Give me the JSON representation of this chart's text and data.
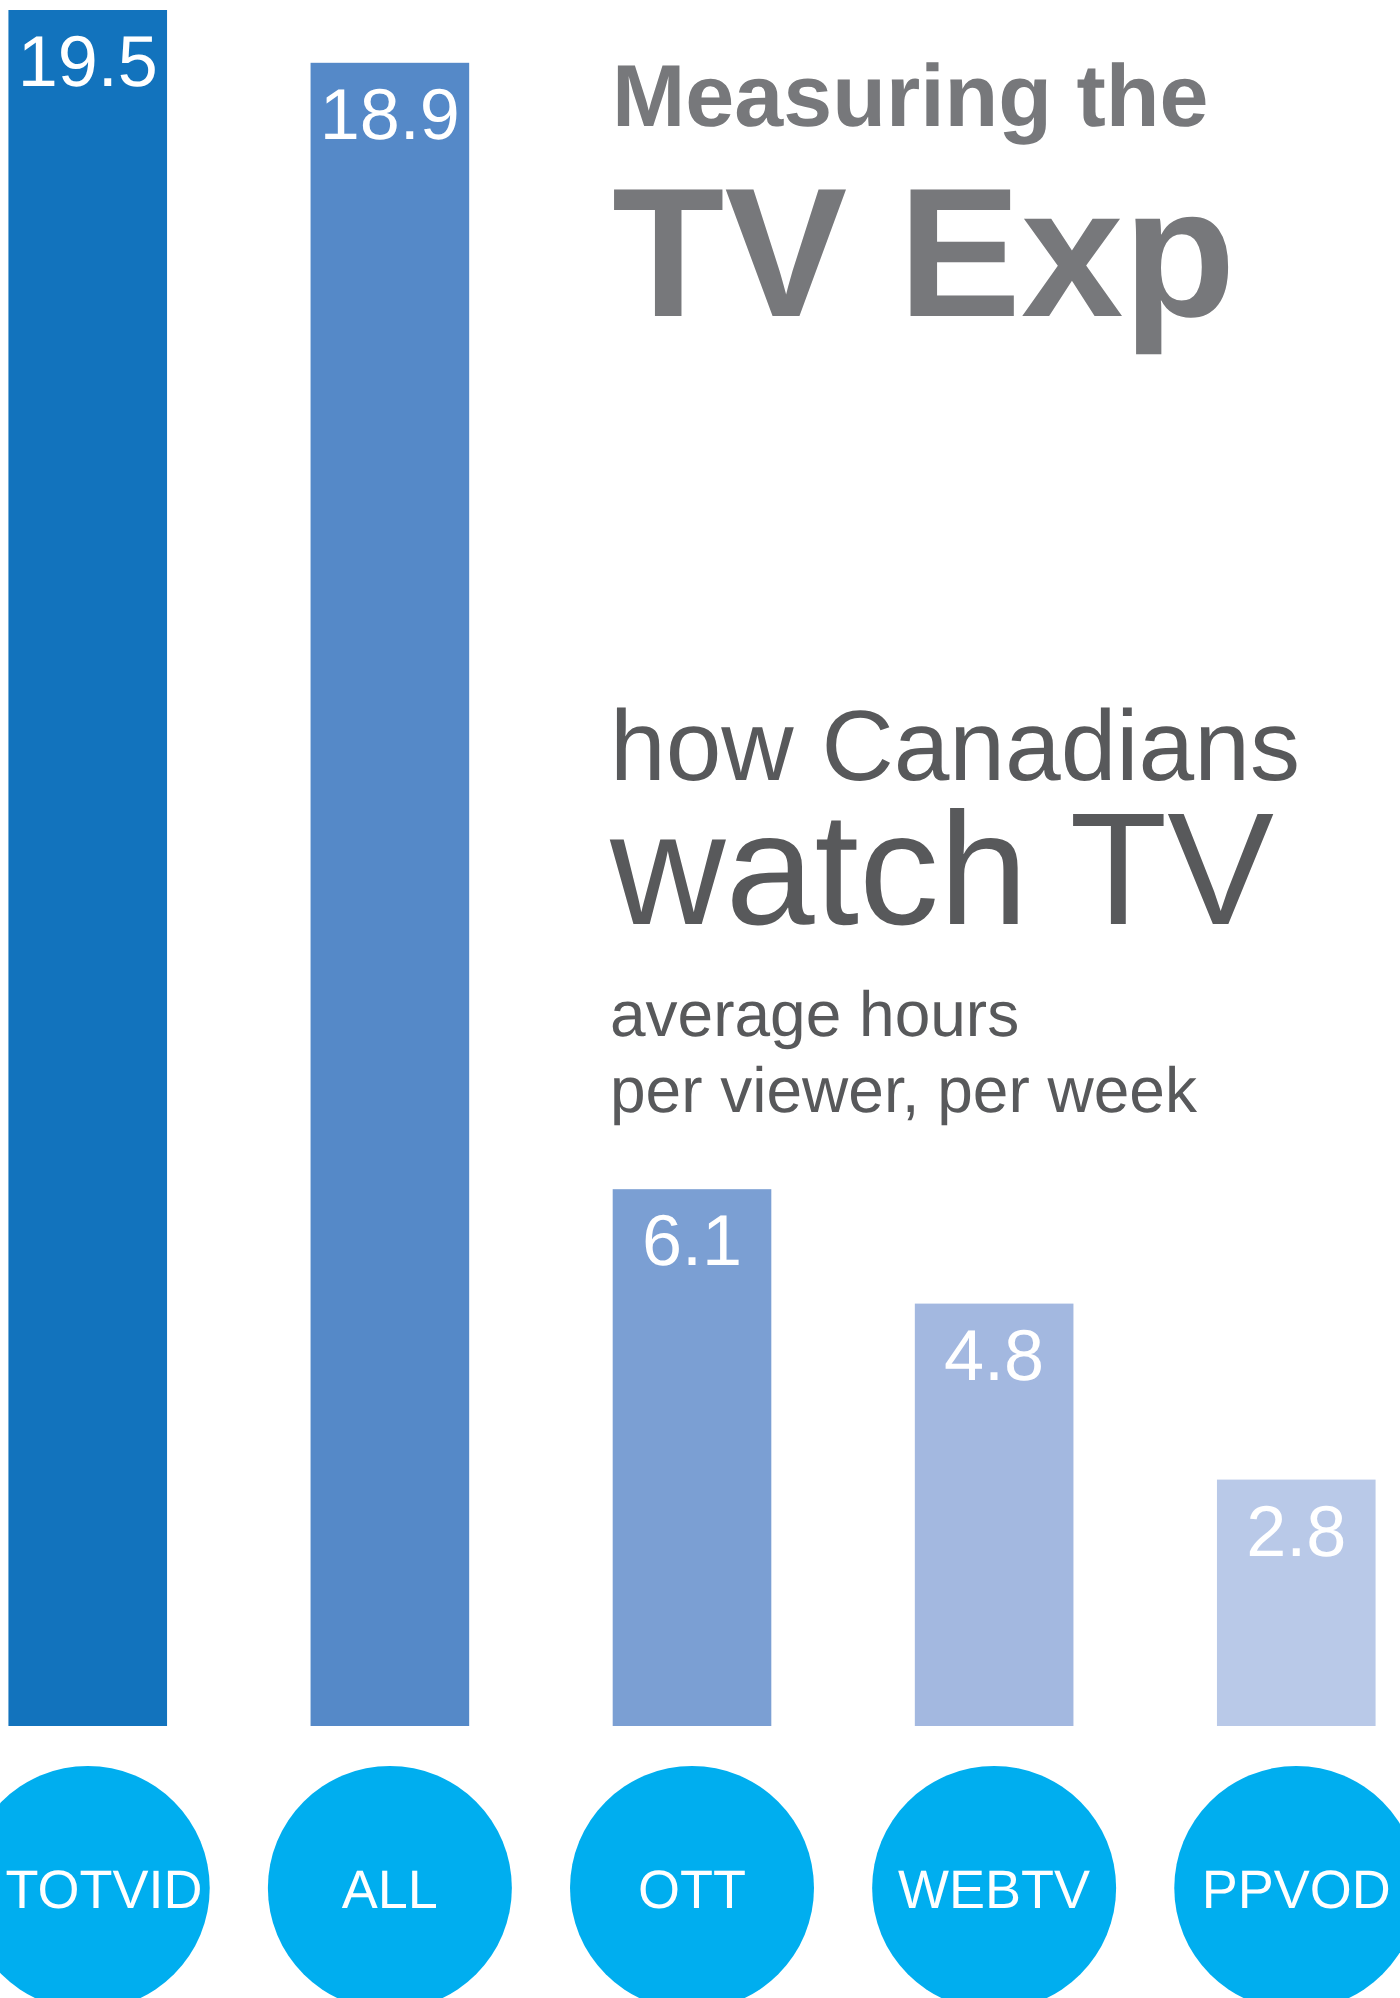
{
  "chart_data": {
    "type": "bar",
    "title": "Measuring the",
    "subtitle": "TV Exp",
    "annotations": [
      "how Canadians",
      "watch TV",
      "average hours",
      "per viewer, per week"
    ],
    "categories": [
      "TOTVID",
      "ALL",
      "OTT",
      "WEBTV",
      "PPVOD"
    ],
    "values": [
      19.5,
      18.9,
      6.1,
      4.8,
      2.8
    ],
    "colors": [
      "#1273bd",
      "#5589c8",
      "#7b9fd3",
      "#a3b8e0",
      "#b9c9e8"
    ],
    "data_labels": true
  }
}
